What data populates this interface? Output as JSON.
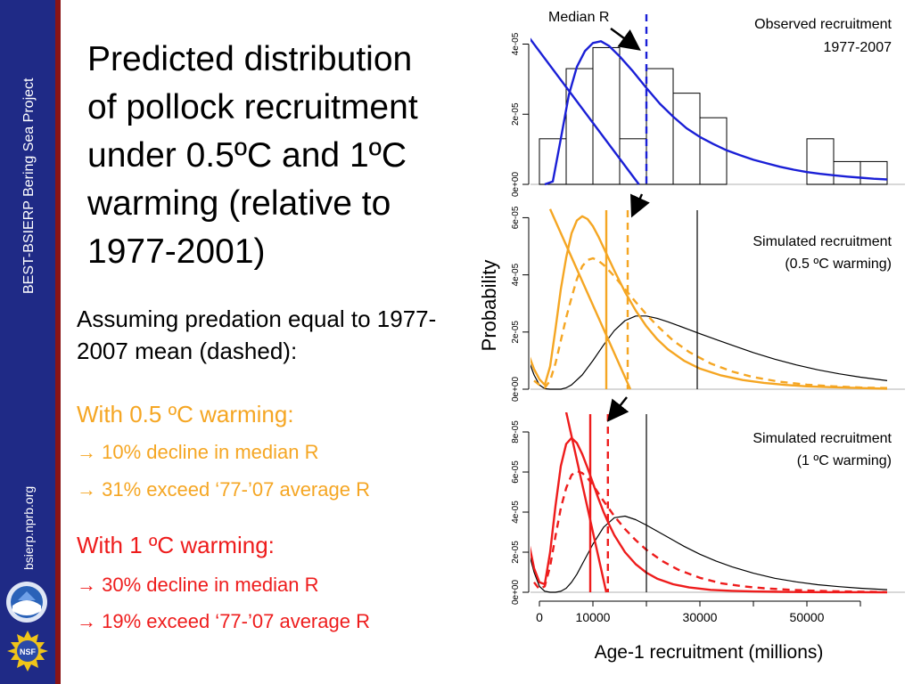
{
  "sidebar": {
    "project": "BEST-BSIERP Bering Sea Project",
    "url": "bsierp.nprb.org",
    "logo_icon": "noaa-logo-icon",
    "nsf_icon": "nsf-logo-icon",
    "nsf_text": "NSF"
  },
  "slide": {
    "title_lines": [
      "Predicted distribution",
      "of pollock recruitment",
      "under 0.5ºC and 1ºC",
      "warming (relative to",
      "1977-2001)"
    ],
    "intro": "Assuming predation equal to 1977-2007 mean (dashed):",
    "group1": {
      "heading": "With 0.5 ºC warming:",
      "items": [
        "→ 10% decline in median R",
        "→ 31% exceed ‘77-’07 average R"
      ],
      "color": "#f5a623"
    },
    "group2": {
      "heading": "With 1 ºC warming:",
      "items": [
        "→ 30% decline in median R",
        "→ 19% exceed ‘77-’07 average R"
      ],
      "color": "#ee1c1c"
    }
  },
  "chart_data": {
    "type": "line",
    "ylabel": "Probability",
    "xlabel": "Age-1 recruitment (millions)",
    "xticks": [
      0,
      10000,
      30000,
      50000
    ],
    "xlim": [
      0,
      65000
    ],
    "panels": [
      {
        "label": "Observed recruitment 1977-2007",
        "ylim": [
          0,
          4.8e-05
        ],
        "yticks": [
          "0e+00",
          "2e-05",
          "4e-05"
        ],
        "ytick_values": [
          0,
          2e-05,
          4e-05
        ],
        "annotation": "Median R",
        "histogram": {
          "bin_width": 5000,
          "bin_starts": [
            0,
            5000,
            10000,
            15000,
            20000,
            25000,
            30000,
            35000,
            40000,
            45000,
            50000,
            55000,
            60000
          ],
          "densities": [
            1.3e-05,
            3.3e-05,
            3.9e-05,
            1.3e-05,
            3.3e-05,
            2.6e-05,
            1.9e-05,
            0,
            0,
            0,
            1.3e-05,
            6.5e-06,
            6.5e-06
          ]
        },
        "series": [
          {
            "color": "#1a1fd6",
            "style": "solid",
            "x": [
              1000,
              2500,
              4000,
              5500,
              7000,
              8500,
              10000,
              11500,
              13000,
              15000,
              17500,
              20000,
              22500,
              25000,
              27500,
              30000,
              32500,
              35000,
              37500,
              40000,
              42500,
              45000,
              47500,
              50000,
              52500,
              55000,
              57500,
              60000,
              62500,
              65000
            ],
            "y": [
              0,
              8e-07,
              1.3e-05,
              2.55e-05,
              3.35e-05,
              3.8e-05,
              4.03e-05,
              4.08e-05,
              3.95e-05,
              3.65e-05,
              3.22e-05,
              2.75e-05,
              2.3e-05,
              1.93e-05,
              1.6e-05,
              1.35e-05,
              1.15e-05,
              9.7e-06,
              8.3e-06,
              7e-06,
              6e-06,
              5e-06,
              4.2e-06,
              3.5e-06,
              3e-06,
              2.6e-06,
              2.2e-06,
              1.9e-06,
              1.6e-06,
              1.4e-06
            ]
          },
          {
            "color": "#1a1fd6",
            "style": "solid",
            "x": [
              -2000,
              18600
            ],
            "y": [
              4.2e-05,
              0
            ]
          },
          {
            "color": "#1a1fd6",
            "style": "dashed",
            "vertical": true,
            "x": [
              20000
            ]
          }
        ]
      },
      {
        "label": "Simulated recruitment (0.5 ºC warming)",
        "ylim": [
          0,
          6.2e-05
        ],
        "yticks": [
          "0e+00",
          "2e-05",
          "4e-05",
          "6e-05"
        ],
        "ytick_values": [
          0,
          2e-05,
          4e-05,
          6e-05
        ],
        "series": [
          {
            "color": "#000000",
            "style": "solid",
            "x": [
              -2000,
              -1000,
              0,
              1000,
              2000,
              3000,
              4000,
              5000,
              6000,
              8000,
              10000,
              12000,
              14000,
              16000,
              18000,
              20000,
              22000,
              24000,
              26000,
              28000,
              30000,
              33000,
              36000,
              40000,
              44000,
              48000,
              52000,
              56000,
              60000,
              65000
            ],
            "y": [
              1e-05,
              5e-06,
              1.5e-06,
              2e-07,
              0,
              0,
              0,
              5e-07,
              1.5e-06,
              5e-06,
              1e-05,
              1.55e-05,
              2.05e-05,
              2.4e-05,
              2.56e-05,
              2.56e-05,
              2.48e-05,
              2.36e-05,
              2.22e-05,
              2.08e-05,
              1.94e-05,
              1.74e-05,
              1.54e-05,
              1.28e-05,
              1.05e-05,
              8.5e-06,
              6.8e-06,
              5.4e-06,
              4.2e-06,
              3e-06
            ]
          },
          {
            "color": "#f5a623",
            "style": "solid",
            "x": [
              -2000,
              -1000,
              0,
              1000,
              2000,
              3000,
              4000,
              5000,
              6000,
              7000,
              8000,
              9000,
              10000,
              11000,
              12000,
              13000,
              14000,
              16000,
              18000,
              20000,
              22000,
              24000,
              27000,
              30000,
              34000,
              38000,
              42000,
              46000,
              50000,
              55000,
              60000,
              65000
            ],
            "y": [
              1.2e-05,
              7e-06,
              3.5e-06,
              1.5e-06,
              8e-06,
              2.1e-05,
              3.5e-05,
              4.6e-05,
              5.45e-05,
              5.9e-05,
              6.05e-05,
              5.95e-05,
              5.7e-05,
              5.35e-05,
              4.95e-05,
              4.55e-05,
              4.15e-05,
              3.4e-05,
              2.75e-05,
              2.2e-05,
              1.75e-05,
              1.4e-05,
              1e-05,
              7.2e-06,
              4.8e-06,
              3.2e-06,
              2.2e-06,
              1.5e-06,
              1e-06,
              7e-07,
              4e-07,
              2e-07
            ]
          },
          {
            "color": "#f5a623",
            "style": "dashed",
            "x": [
              -1000,
              0,
              1000,
              2000,
              3000,
              4000,
              5000,
              6000,
              7000,
              8000,
              9000,
              10000,
              11000,
              12000,
              14000,
              16000,
              18000,
              20000,
              22000,
              25000,
              28000,
              32000,
              36000,
              40000,
              45000,
              50000,
              55000,
              60000,
              65000
            ],
            "y": [
              3e-06,
              1.5e-06,
              5e-07,
              3e-06,
              9e-06,
              1.7e-05,
              2.5e-05,
              3.2e-05,
              3.85e-05,
              4.3e-05,
              4.52e-05,
              4.58e-05,
              4.5e-05,
              4.35e-05,
              3.95e-05,
              3.5e-05,
              3.05e-05,
              2.62e-05,
              2.22e-05,
              1.7e-05,
              1.3e-05,
              9e-06,
              6.2e-06,
              4.2e-06,
              2.6e-06,
              1.6e-06,
              1e-06,
              6e-07,
              4e-07
            ]
          },
          {
            "color": "#f5a623",
            "style": "solid",
            "x": [
              2000,
              17000
            ],
            "y": [
              6.3e-05,
              0
            ]
          },
          {
            "color": "#f5a623",
            "style": "solid",
            "vertical": true,
            "x": [
              12500
            ]
          },
          {
            "color": "#f5a623",
            "style": "dashed",
            "vertical": true,
            "x": [
              16500
            ]
          },
          {
            "color": "#000000",
            "style": "solid",
            "vertical": true,
            "x": [
              29500
            ]
          }
        ]
      },
      {
        "label": "Simulated recruitment (1 ºC warming)",
        "ylim": [
          0,
          8.8e-05
        ],
        "yticks": [
          "0e+00",
          "2e-05",
          "4e-05",
          "6e-05",
          "8e-05"
        ],
        "ytick_values": [
          0,
          2e-05,
          4e-05,
          6e-05,
          8e-05
        ],
        "series": [
          {
            "color": "#000000",
            "style": "solid",
            "x": [
              -2000,
              -1000,
              0,
              1000,
              2000,
              3000,
              4000,
              5000,
              6000,
              7000,
              8000,
              10000,
              12000,
              14000,
              16000,
              18000,
              20000,
              22000,
              24000,
              27000,
              30000,
              33000,
              36000,
              40000,
              44000,
              48000,
              52000,
              56000,
              60000,
              65000
            ],
            "y": [
              2e-05,
              1e-05,
              3e-06,
              5e-07,
              0,
              0,
              5e-07,
              2e-06,
              5e-06,
              9e-06,
              1.4e-05,
              2.4e-05,
              3.25e-05,
              3.72e-05,
              3.8e-05,
              3.62e-05,
              3.35e-05,
              3.05e-05,
              2.75e-05,
              2.3e-05,
              1.9e-05,
              1.56e-05,
              1.27e-05,
              9.5e-06,
              7e-06,
              5.2e-06,
              3.8e-06,
              2.8e-06,
              2e-06,
              1.3e-06
            ]
          },
          {
            "color": "#ee1c1c",
            "style": "solid",
            "x": [
              -2000,
              -1000,
              0,
              1000,
              2000,
              3000,
              4000,
              5000,
              6000,
              7000,
              8000,
              9000,
              10000,
              11000,
              12000,
              13000,
              14000,
              16000,
              18000,
              20000,
              22000,
              25000,
              28000,
              32000,
              36000,
              40000,
              45000,
              50000,
              55000,
              60000,
              65000
            ],
            "y": [
              2.5e-05,
              1.2e-05,
              5e-06,
              4e-06,
              2e-05,
              4.3e-05,
              6.3e-05,
              7.4e-05,
              7.7e-05,
              7.45e-05,
              6.9e-05,
              6.2e-05,
              5.45e-05,
              4.7e-05,
              4e-05,
              3.4e-05,
              2.85e-05,
              2e-05,
              1.4e-05,
              9.8e-06,
              6.8e-06,
              4e-06,
              2.4e-06,
              1.2e-06,
              7e-07,
              4e-07,
              2e-07,
              1e-07,
              5e-08,
              3e-08,
              2e-08
            ]
          },
          {
            "color": "#ee1c1c",
            "style": "dashed",
            "x": [
              -1000,
              0,
              1000,
              2000,
              3000,
              4000,
              5000,
              6000,
              7000,
              8000,
              9000,
              10000,
              11000,
              12000,
              14000,
              16000,
              18000,
              20000,
              23000,
              26000,
              30000,
              34000,
              38000,
              42000,
              47000,
              52000,
              57000,
              62000,
              65000
            ],
            "y": [
              5e-06,
              1.5e-06,
              3e-06,
              1.3e-05,
              2.8e-05,
              4.2e-05,
              5.2e-05,
              5.85e-05,
              6.05e-05,
              5.95e-05,
              5.7e-05,
              5.35e-05,
              4.95e-05,
              4.55e-05,
              3.8e-05,
              3.15e-05,
              2.6e-05,
              2.12e-05,
              1.55e-05,
              1.12e-05,
              7.2e-06,
              4.5e-06,
              3e-06,
              2e-06,
              1.2e-06,
              7e-07,
              4e-07,
              2e-07,
              1e-07
            ]
          },
          {
            "color": "#ee1c1c",
            "style": "solid",
            "x": [
              5000,
              12500
            ],
            "y": [
              9e-05,
              0
            ]
          },
          {
            "color": "#ee1c1c",
            "style": "solid",
            "vertical": true,
            "x": [
              9500
            ]
          },
          {
            "color": "#ee1c1c",
            "style": "dashed",
            "vertical": true,
            "x": [
              12800
            ]
          },
          {
            "color": "#000000",
            "style": "solid",
            "vertical": true,
            "x": [
              20000
            ]
          }
        ]
      }
    ]
  }
}
